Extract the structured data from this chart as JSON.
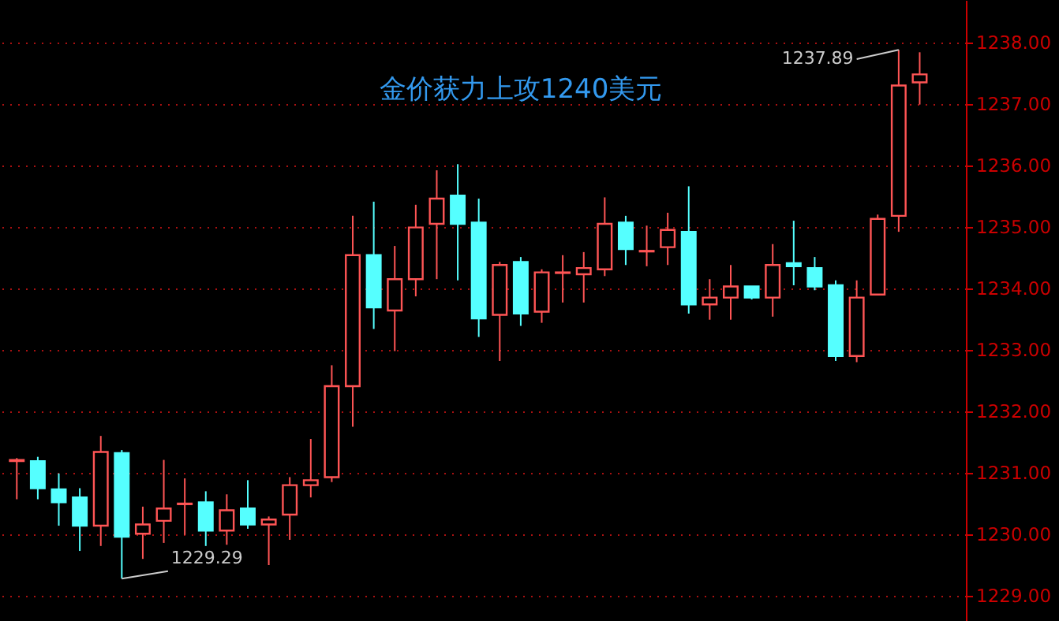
{
  "chart_data": {
    "type": "candlestick",
    "title": "金价获力上攻1240美元",
    "categories": [
      null,
      null,
      null,
      null,
      null,
      null,
      null,
      null,
      null,
      null,
      null,
      null,
      null,
      null,
      null,
      null,
      null,
      null,
      null,
      null,
      null,
      null,
      null,
      null,
      null,
      null,
      null,
      null,
      null,
      null,
      null,
      null,
      null,
      null,
      null,
      null,
      null,
      null,
      null,
      null,
      null,
      null,
      null,
      null
    ],
    "ohlc": [
      [
        1231.2,
        1231.25,
        1230.58,
        1231.22
      ],
      [
        1231.2,
        1231.27,
        1230.58,
        1230.76
      ],
      [
        1230.74,
        1231.0,
        1230.15,
        1230.53
      ],
      [
        1230.61,
        1230.76,
        1229.74,
        1230.15
      ],
      [
        1230.15,
        1231.61,
        1229.82,
        1231.35
      ],
      [
        1231.33,
        1231.38,
        1229.29,
        1229.97
      ],
      [
        1230.02,
        1230.46,
        1229.61,
        1230.17
      ],
      [
        1230.23,
        1231.22,
        1229.87,
        1230.43
      ],
      [
        1230.5,
        1230.92,
        1230.0,
        1230.51
      ],
      [
        1230.53,
        1230.71,
        1229.82,
        1230.07
      ],
      [
        1230.07,
        1230.66,
        1229.84,
        1230.4
      ],
      [
        1230.43,
        1230.89,
        1230.1,
        1230.17
      ],
      [
        1230.17,
        1230.3,
        1229.51,
        1230.25
      ],
      [
        1230.33,
        1230.94,
        1229.92,
        1230.81
      ],
      [
        1230.81,
        1231.56,
        1230.61,
        1230.89
      ],
      [
        1230.94,
        1232.76,
        1230.86,
        1232.42
      ],
      [
        1232.42,
        1235.19,
        1231.76,
        1234.55
      ],
      [
        1234.55,
        1235.42,
        1233.35,
        1233.7
      ],
      [
        1233.65,
        1234.7,
        1232.99,
        1234.16
      ],
      [
        1234.16,
        1235.37,
        1233.88,
        1235.0
      ],
      [
        1235.06,
        1235.93,
        1234.16,
        1235.47
      ],
      [
        1235.52,
        1236.03,
        1234.14,
        1235.06
      ],
      [
        1235.08,
        1235.47,
        1233.22,
        1233.52
      ],
      [
        1233.58,
        1234.44,
        1232.83,
        1234.39
      ],
      [
        1234.44,
        1234.52,
        1233.4,
        1233.6
      ],
      [
        1233.63,
        1234.32,
        1233.45,
        1234.27
      ],
      [
        1234.26,
        1234.55,
        1233.78,
        1234.27
      ],
      [
        1234.24,
        1234.6,
        1233.78,
        1234.34
      ],
      [
        1234.32,
        1235.49,
        1234.21,
        1235.06
      ],
      [
        1235.08,
        1235.19,
        1234.39,
        1234.65
      ],
      [
        1234.61,
        1235.03,
        1234.37,
        1234.62
      ],
      [
        1234.68,
        1235.24,
        1234.39,
        1234.96
      ],
      [
        1234.93,
        1235.67,
        1233.6,
        1233.75
      ],
      [
        1233.75,
        1234.16,
        1233.5,
        1233.86
      ],
      [
        1233.86,
        1234.39,
        1233.5,
        1234.04
      ],
      [
        1234.04,
        1234.04,
        1233.83,
        1233.86
      ],
      [
        1233.86,
        1234.73,
        1233.55,
        1234.39
      ],
      [
        1234.42,
        1235.11,
        1234.06,
        1234.37
      ],
      [
        1234.34,
        1234.52,
        1233.98,
        1234.04
      ],
      [
        1234.06,
        1234.14,
        1232.83,
        1232.91
      ],
      [
        1232.91,
        1234.14,
        1232.81,
        1233.86
      ],
      [
        1233.91,
        1235.21,
        1233.91,
        1235.14
      ],
      [
        1235.19,
        1237.89,
        1234.93,
        1237.31
      ],
      [
        1237.36,
        1237.85,
        1237.0,
        1237.49
      ]
    ],
    "colors": [
      "#ff5555",
      "#55ffff",
      "#55ffff",
      "#55ffff",
      "#ff5555",
      "#55ffff",
      "#ff5555",
      "#ff5555",
      "#ff5555",
      "#55ffff",
      "#ff5555",
      "#55ffff",
      "#ff5555",
      "#ff5555",
      "#ff5555",
      "#ff5555",
      "#ff5555",
      "#55ffff",
      "#ff5555",
      "#ff5555",
      "#ff5555",
      "#55ffff",
      "#55ffff",
      "#ff5555",
      "#55ffff",
      "#ff5555",
      "#ff5555",
      "#ff5555",
      "#ff5555",
      "#55ffff",
      "#ff5555",
      "#ff5555",
      "#55ffff",
      "#ff5555",
      "#ff5555",
      "#55ffff",
      "#ff5555",
      "#55ffff",
      "#55ffff",
      "#55ffff",
      "#ff5555",
      "#ff5555",
      "#ff5555",
      "#ff5555"
    ],
    "annotations": [
      "1237.89",
      "1229.29"
    ],
    "ylim": [
      1228.6,
      1238.7
    ],
    "yticks": [
      {
        "value": 1229,
        "label": "1229.00"
      },
      {
        "value": 1230,
        "label": "1230.00"
      },
      {
        "value": 1231,
        "label": "1231.00"
      },
      {
        "value": 1232,
        "label": "1232.00"
      },
      {
        "value": 1233,
        "label": "1233.00"
      },
      {
        "value": 1234,
        "label": "1234.00"
      },
      {
        "value": 1235,
        "label": "1235.00"
      },
      {
        "value": 1236,
        "label": "1236.00"
      },
      {
        "value": 1237,
        "label": "1237.00"
      },
      {
        "value": 1238,
        "label": "1238.00"
      }
    ],
    "grid": "y"
  }
}
